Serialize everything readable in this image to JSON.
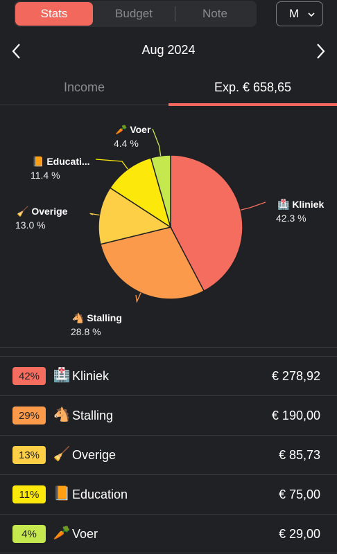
{
  "tabs_top": {
    "stats": "Stats",
    "budget": "Budget",
    "note": "Note",
    "period": "M"
  },
  "month": {
    "title": "Aug 2024"
  },
  "type_tabs": {
    "income": "Income",
    "expense": "Exp. € 658,65"
  },
  "colors": {
    "accent": "#f2685c",
    "kliniek": "#f46d5f",
    "stalling": "#fb9a4b",
    "overige": "#fdcf46",
    "education": "#fce80a",
    "voer": "#c5e84f"
  },
  "chart_data": {
    "type": "pie",
    "slices": [
      {
        "name": "Kliniek",
        "icon": "🏥",
        "pct": 42.3,
        "pct_label": "42.3 %",
        "color": "#f46d5f"
      },
      {
        "name": "Stalling",
        "icon": "🐴",
        "pct": 28.8,
        "pct_label": "28.8 %",
        "color": "#fb9a4b"
      },
      {
        "name": "Overige",
        "icon": "🧹",
        "pct": 13.0,
        "pct_label": "13.0 %",
        "color": "#fdcf46"
      },
      {
        "name": "Educati...",
        "icon": "📙",
        "pct": 11.4,
        "pct_label": "11.4 %",
        "color": "#fce80a"
      },
      {
        "name": "Voer",
        "icon": "🥕",
        "pct": 4.4,
        "pct_label": "4.4 %",
        "color": "#c5e84f"
      }
    ]
  },
  "categories": [
    {
      "badge": "42%",
      "icon": "🏥",
      "name": "Kliniek",
      "amount": "€ 278,92",
      "color": "#f46d5f"
    },
    {
      "badge": "29%",
      "icon": "🐴",
      "name": "Stalling",
      "amount": "€ 190,00",
      "color": "#fb9a4b"
    },
    {
      "badge": "13%",
      "icon": "🧹",
      "name": "Overige",
      "amount": "€ 85,73",
      "color": "#fdcf46"
    },
    {
      "badge": "11%",
      "icon": "📙",
      "name": "Education",
      "amount": "€ 75,00",
      "color": "#fce80a"
    },
    {
      "badge": "4%",
      "icon": "🥕",
      "name": "Voer",
      "amount": "€ 29,00",
      "color": "#c5e84f"
    }
  ]
}
